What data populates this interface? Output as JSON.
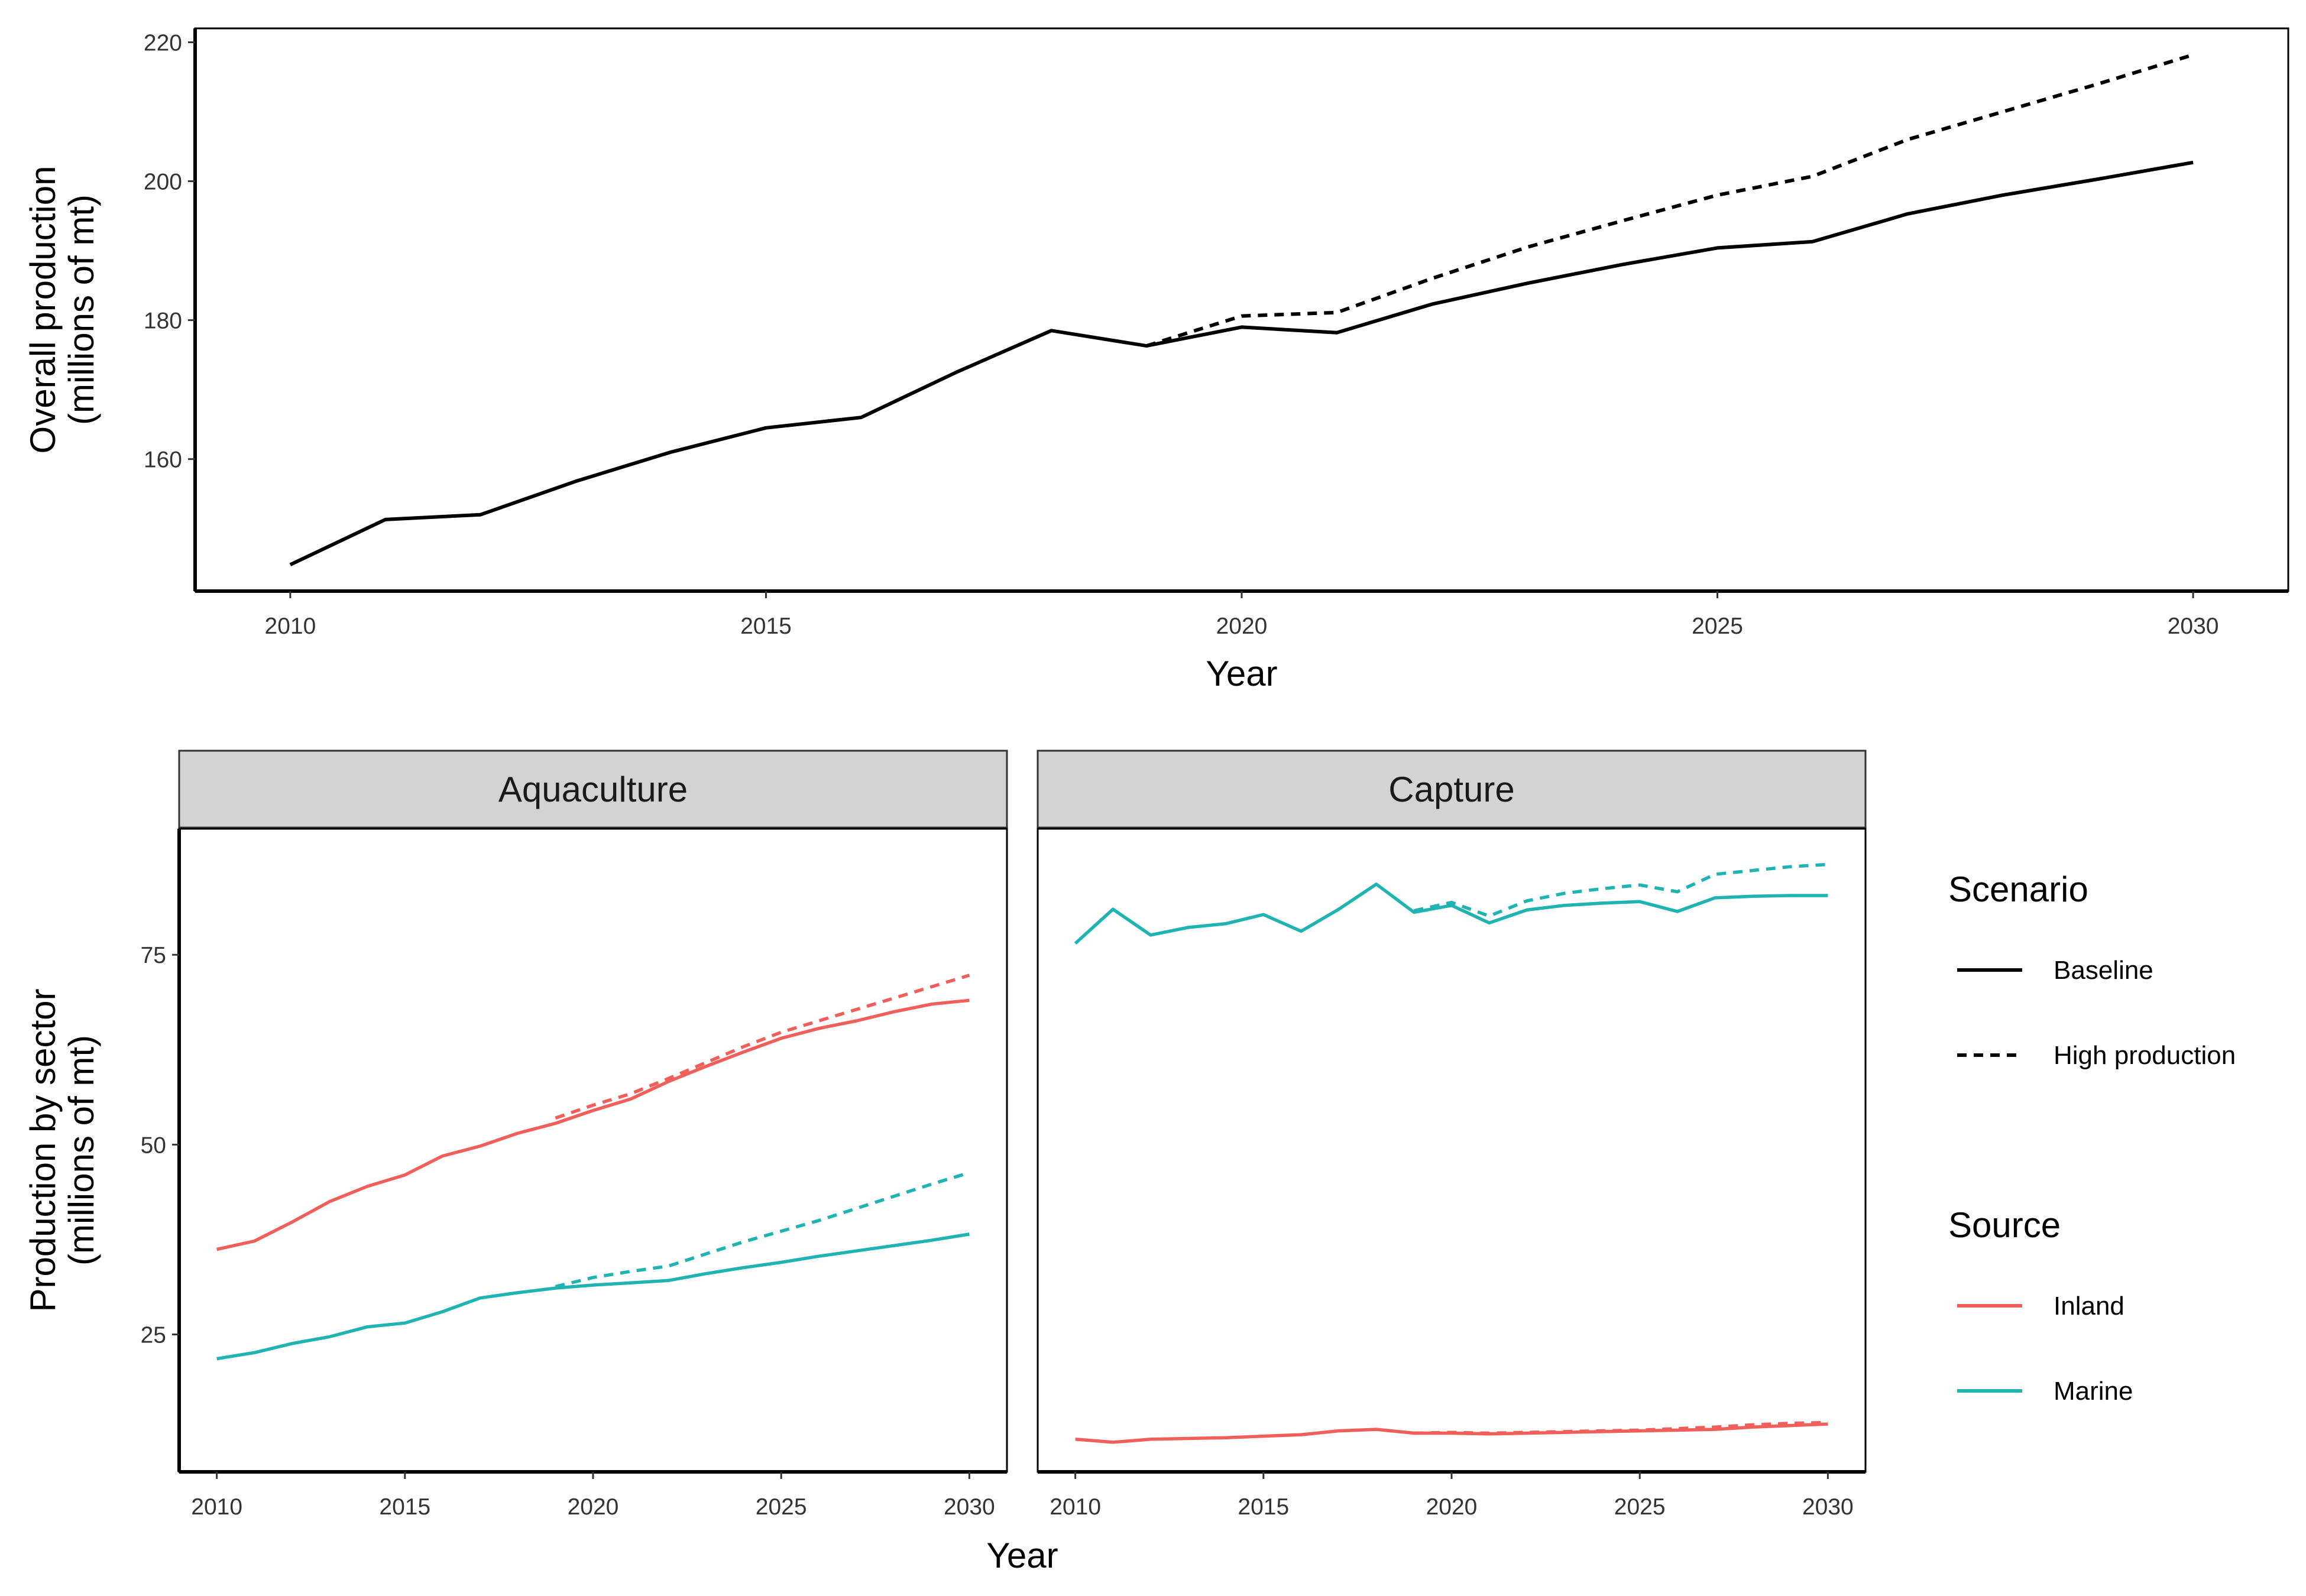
{
  "colors": {
    "baseline": "#000000",
    "inland": "#F15F5A",
    "marine": "#1FB3B2",
    "strip_bg": "#D3D3D3"
  },
  "chart_data": [
    {
      "type": "line",
      "id": "overall",
      "xlabel": "Year",
      "ylabel_lines": [
        "Overall production",
        "(millions of mt)"
      ],
      "xlim": [
        2009,
        2031
      ],
      "ylim": [
        141,
        222
      ],
      "xticks": [
        2010,
        2015,
        2020,
        2025,
        2030
      ],
      "yticks": [
        160,
        180,
        200,
        220
      ],
      "series": [
        {
          "name": "Baseline",
          "x": [
            2010,
            2011,
            2012,
            2013,
            2014,
            2015,
            2016,
            2017,
            2018,
            2019,
            2020,
            2021,
            2022,
            2023,
            2024,
            2025,
            2026,
            2027,
            2028,
            2029,
            2030
          ],
          "y": [
            144.8,
            151.3,
            152.0,
            156.8,
            161.0,
            164.5,
            166.0,
            172.5,
            178.5,
            176.3,
            179.0,
            178.2,
            182.3,
            185.3,
            188.0,
            190.4,
            191.3,
            195.3,
            198.0,
            200.3,
            202.7
          ]
        },
        {
          "name": "High production",
          "x": [
            2019,
            2020,
            2021,
            2022,
            2023,
            2024,
            2025,
            2026,
            2027,
            2028,
            2029,
            2030
          ],
          "y": [
            176.3,
            180.6,
            181.1,
            186.0,
            190.5,
            194.3,
            198.0,
            200.7,
            206.0,
            210.0,
            214.0,
            218.2
          ]
        }
      ]
    },
    {
      "type": "line",
      "id": "sector",
      "xlabel": "Year",
      "ylabel_lines": [
        "Production by sector",
        "(millions of mt)"
      ],
      "xlim": [
        2009,
        2031
      ],
      "ylim": [
        6.9,
        91.6
      ],
      "xticks": [
        2010,
        2015,
        2020,
        2025,
        2030
      ],
      "yticks": [
        25,
        50,
        75
      ],
      "panels": [
        {
          "label": "Aquaculture",
          "series": [
            {
              "name": "Inland",
              "scenario": "Baseline",
              "x": [
                2010,
                2011,
                2012,
                2013,
                2014,
                2015,
                2016,
                2017,
                2018,
                2019,
                2020,
                2021,
                2022,
                2023,
                2024,
                2025,
                2026,
                2027,
                2028,
                2029,
                2030
              ],
              "y": [
                36.2,
                37.3,
                39.8,
                42.5,
                44.5,
                46.0,
                48.5,
                49.8,
                51.5,
                52.8,
                54.5,
                56.0,
                58.3,
                60.3,
                62.2,
                64.0,
                65.3,
                66.3,
                67.5,
                68.5,
                69.0
              ]
            },
            {
              "name": "Inland",
              "scenario": "High production",
              "x": [
                2019,
                2020,
                2021,
                2022,
                2023,
                2024,
                2025,
                2026,
                2027,
                2028,
                2029,
                2030
              ],
              "y": [
                53.5,
                55.2,
                56.7,
                58.7,
                60.8,
                62.9,
                64.8,
                66.3,
                67.8,
                69.3,
                70.8,
                72.3
              ]
            },
            {
              "name": "Marine",
              "scenario": "Baseline",
              "x": [
                2010,
                2011,
                2012,
                2013,
                2014,
                2015,
                2016,
                2017,
                2018,
                2019,
                2020,
                2021,
                2022,
                2023,
                2024,
                2025,
                2026,
                2027,
                2028,
                2029,
                2030
              ],
              "y": [
                21.8,
                22.6,
                23.8,
                24.7,
                26.0,
                26.5,
                28.0,
                29.8,
                30.5,
                31.1,
                31.5,
                31.8,
                32.1,
                33.0,
                33.8,
                34.5,
                35.3,
                36.0,
                36.7,
                37.4,
                38.2
              ]
            },
            {
              "name": "Marine",
              "scenario": "High production",
              "x": [
                2019,
                2020,
                2021,
                2022,
                2023,
                2024,
                2025,
                2026,
                2027,
                2028,
                2029,
                2030
              ],
              "y": [
                31.3,
                32.5,
                33.3,
                34.0,
                35.6,
                37.2,
                38.6,
                40.0,
                41.6,
                43.2,
                44.8,
                46.3
              ]
            }
          ]
        },
        {
          "label": "Capture",
          "series": [
            {
              "name": "Inland",
              "scenario": "Baseline",
              "x": [
                2010,
                2011,
                2012,
                2013,
                2014,
                2015,
                2016,
                2017,
                2018,
                2019,
                2020,
                2021,
                2022,
                2023,
                2024,
                2025,
                2026,
                2027,
                2028,
                2029,
                2030
              ],
              "y": [
                11.2,
                10.8,
                11.2,
                11.3,
                11.4,
                11.6,
                11.8,
                12.3,
                12.5,
                12.0,
                12.0,
                11.9,
                12.0,
                12.1,
                12.2,
                12.3,
                12.4,
                12.5,
                12.8,
                13.0,
                13.2
              ]
            },
            {
              "name": "Inland",
              "scenario": "High production",
              "x": [
                2019,
                2020,
                2021,
                2022,
                2023,
                2024,
                2025,
                2026,
                2027,
                2028,
                2029,
                2030
              ],
              "y": [
                12.0,
                12.1,
                12.0,
                12.1,
                12.2,
                12.3,
                12.4,
                12.6,
                12.8,
                13.1,
                13.3,
                13.4
              ]
            },
            {
              "name": "Marine",
              "scenario": "Baseline",
              "x": [
                2010,
                2011,
                2012,
                2013,
                2014,
                2015,
                2016,
                2017,
                2018,
                2019,
                2020,
                2021,
                2022,
                2023,
                2024,
                2025,
                2026,
                2027,
                2028,
                2029,
                2030
              ],
              "y": [
                76.5,
                81.0,
                77.6,
                78.6,
                79.1,
                80.3,
                78.1,
                81.0,
                84.3,
                80.6,
                81.5,
                79.2,
                80.9,
                81.5,
                81.8,
                82.0,
                80.7,
                82.5,
                82.7,
                82.8,
                82.8
              ]
            },
            {
              "name": "Marine",
              "scenario": "High production",
              "x": [
                2019,
                2020,
                2021,
                2022,
                2023,
                2024,
                2025,
                2026,
                2027,
                2028,
                2029,
                2030
              ],
              "y": [
                80.8,
                81.9,
                80.1,
                82.1,
                83.1,
                83.7,
                84.2,
                83.3,
                85.6,
                86.1,
                86.6,
                86.9
              ]
            }
          ]
        }
      ],
      "legend": {
        "placement": "right",
        "scenario": {
          "title": "Scenario",
          "items": [
            "Baseline",
            "High production"
          ]
        },
        "source": {
          "title": "Source",
          "items": [
            "Inland",
            "Marine"
          ]
        }
      }
    }
  ]
}
